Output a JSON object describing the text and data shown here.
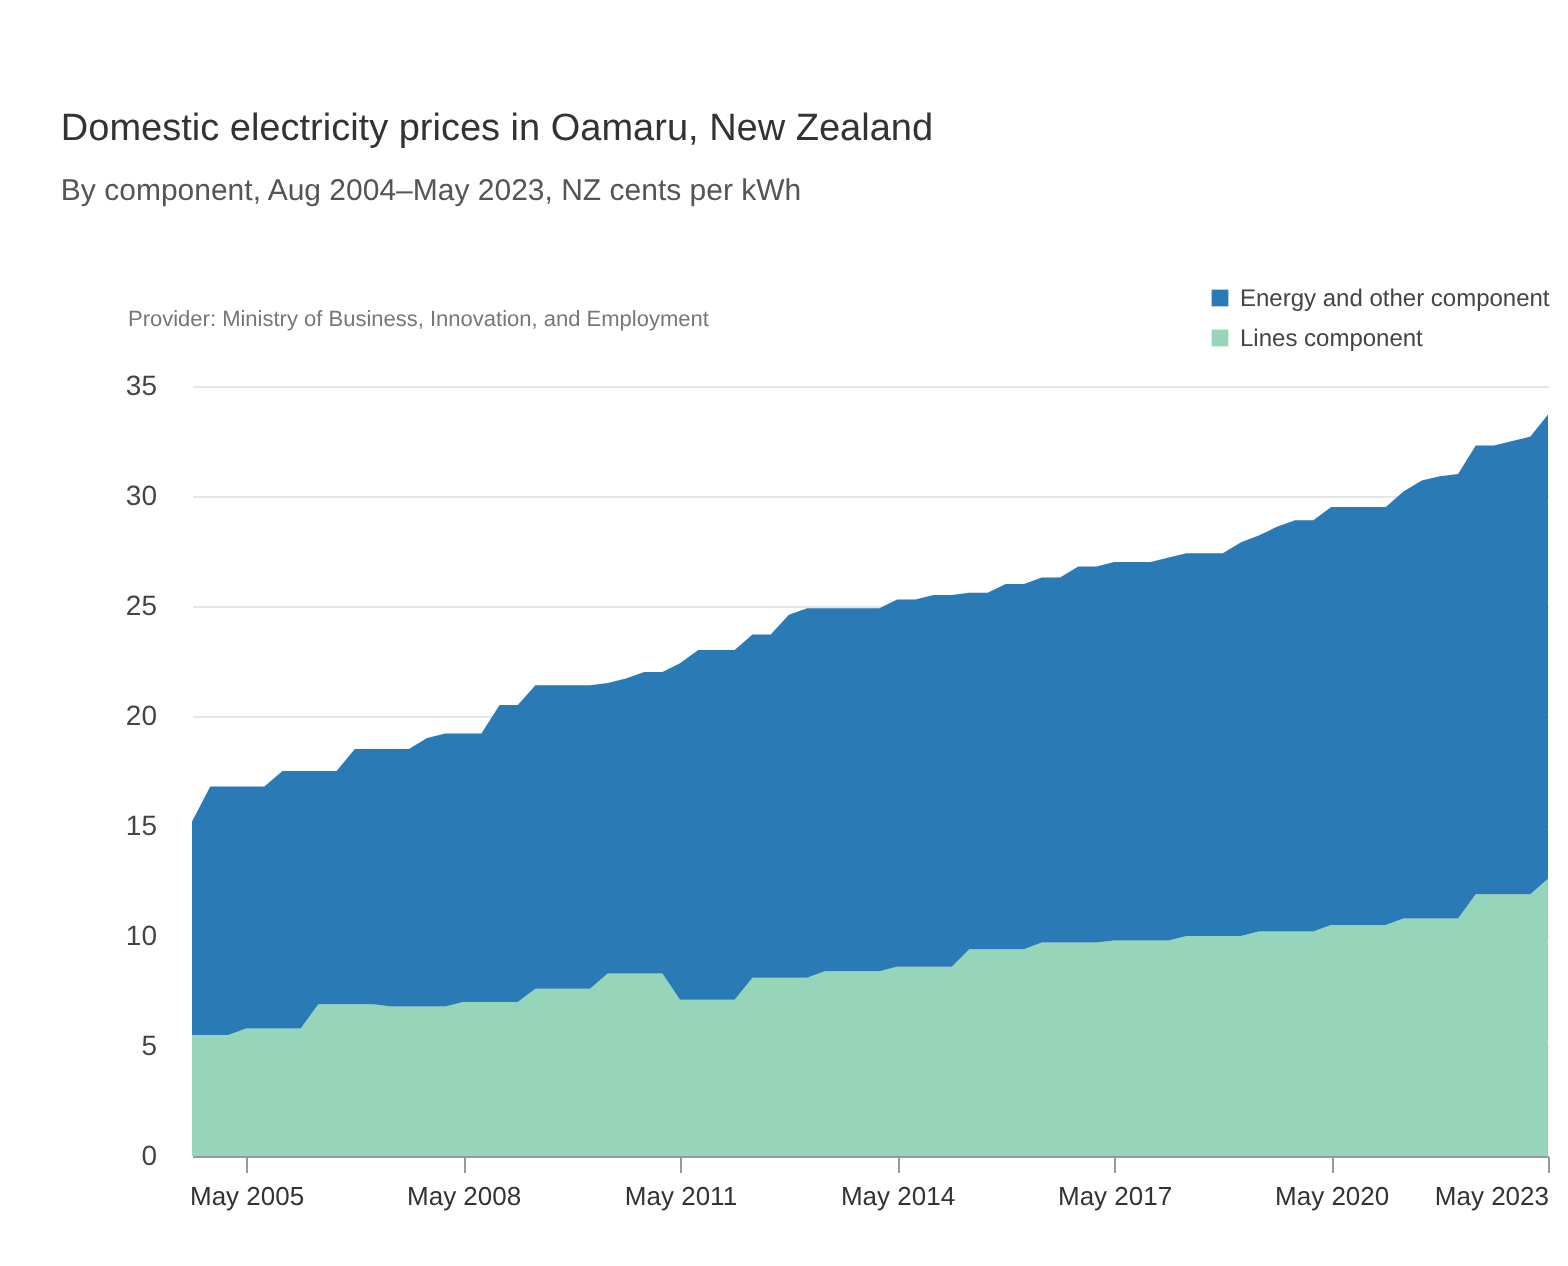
{
  "chart_data": {
    "type": "area",
    "title": "Domestic electricity prices in Oamaru, New Zealand",
    "subtitle": "By component, Aug 2004–May 2023, NZ cents per kWh",
    "annotations": [
      "Provider: Ministry of Business, Innovation, and Employment"
    ],
    "stacked": true,
    "x": [
      "2004-08",
      "2004-11",
      "2005-02",
      "2005-05",
      "2005-08",
      "2005-11",
      "2006-02",
      "2006-05",
      "2006-08",
      "2006-11",
      "2007-02",
      "2007-05",
      "2007-08",
      "2007-11",
      "2008-02",
      "2008-05",
      "2008-08",
      "2008-11",
      "2009-02",
      "2009-05",
      "2009-08",
      "2009-11",
      "2010-02",
      "2010-05",
      "2010-08",
      "2010-11",
      "2011-02",
      "2011-05",
      "2011-08",
      "2011-11",
      "2012-02",
      "2012-05",
      "2012-08",
      "2012-11",
      "2013-02",
      "2013-05",
      "2013-08",
      "2013-11",
      "2014-02",
      "2014-05",
      "2014-08",
      "2014-11",
      "2015-02",
      "2015-05",
      "2015-08",
      "2015-11",
      "2016-02",
      "2016-05",
      "2016-08",
      "2016-11",
      "2017-02",
      "2017-05",
      "2017-08",
      "2017-11",
      "2018-02",
      "2018-05",
      "2018-08",
      "2018-11",
      "2019-02",
      "2019-05",
      "2019-08",
      "2019-11",
      "2020-02",
      "2020-05",
      "2020-08",
      "2020-11",
      "2021-02",
      "2021-05",
      "2021-08",
      "2021-11",
      "2022-02",
      "2022-05",
      "2022-08",
      "2022-11",
      "2023-02",
      "2023-05"
    ],
    "series": [
      {
        "name": "Lines component",
        "color": "#96d5b9",
        "values": [
          5.5,
          5.5,
          5.5,
          5.8,
          5.8,
          5.8,
          5.8,
          6.9,
          6.9,
          6.9,
          6.9,
          6.8,
          6.8,
          6.8,
          6.8,
          7.0,
          7.0,
          7.0,
          7.0,
          7.6,
          7.6,
          7.6,
          7.6,
          8.3,
          8.3,
          8.3,
          8.3,
          7.1,
          7.1,
          7.1,
          7.1,
          8.1,
          8.1,
          8.1,
          8.1,
          8.4,
          8.4,
          8.4,
          8.4,
          8.6,
          8.6,
          8.6,
          8.6,
          9.4,
          9.4,
          9.4,
          9.4,
          9.7,
          9.7,
          9.7,
          9.7,
          9.8,
          9.8,
          9.8,
          9.8,
          10.0,
          10.0,
          10.0,
          10.0,
          10.2,
          10.2,
          10.2,
          10.2,
          10.5,
          10.5,
          10.5,
          10.5,
          10.8,
          10.8,
          10.8,
          10.8,
          11.9,
          11.9,
          11.9,
          11.9,
          12.6
        ]
      },
      {
        "name": "Energy and other component",
        "color": "#2a7ab5",
        "values": [
          9.7,
          11.3,
          11.3,
          11.0,
          11.0,
          11.7,
          11.7,
          10.6,
          10.6,
          11.6,
          11.6,
          11.7,
          11.7,
          12.2,
          12.4,
          12.2,
          12.2,
          13.5,
          13.5,
          13.8,
          13.8,
          13.8,
          13.8,
          13.2,
          13.4,
          13.7,
          13.7,
          15.3,
          15.9,
          15.9,
          15.9,
          15.6,
          15.6,
          16.5,
          16.8,
          16.5,
          16.5,
          16.5,
          16.5,
          16.7,
          16.7,
          16.9,
          16.9,
          16.2,
          16.2,
          16.6,
          16.6,
          16.6,
          16.6,
          17.1,
          17.1,
          17.2,
          17.2,
          17.2,
          17.4,
          17.4,
          17.4,
          17.4,
          17.9,
          18.0,
          18.4,
          18.7,
          18.7,
          19.0,
          19.0,
          19.0,
          19.0,
          19.4,
          19.9,
          20.1,
          20.2,
          20.4,
          20.4,
          20.6,
          20.8,
          21.1
        ]
      }
    ],
    "xlim": [
      "2004-08",
      "2023-05"
    ],
    "xticks": [
      {
        "value": "2005-05",
        "label": "May 2005"
      },
      {
        "value": "2008-05",
        "label": "May 2008"
      },
      {
        "value": "2011-05",
        "label": "May 2011"
      },
      {
        "value": "2014-05",
        "label": "May 2014"
      },
      {
        "value": "2017-05",
        "label": "May 2017"
      },
      {
        "value": "2020-05",
        "label": "May 2020"
      },
      {
        "value": "2023-05",
        "label": "May 2023"
      }
    ],
    "ylim": [
      0,
      35
    ],
    "yticks": [
      0,
      5,
      10,
      15,
      20,
      25,
      30,
      35
    ],
    "grid": "y",
    "legend": "top right"
  }
}
